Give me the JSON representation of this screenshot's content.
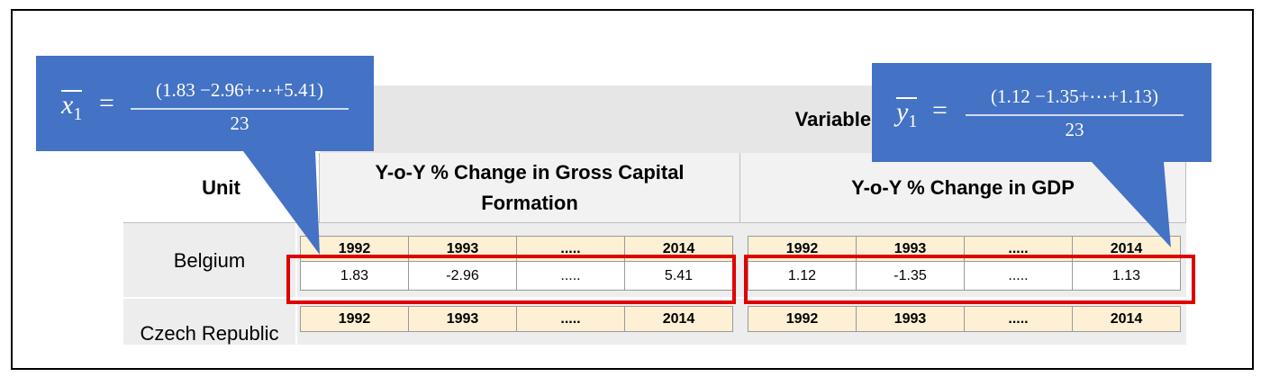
{
  "header": {
    "variables": "Variables",
    "unit": "Unit",
    "columns": [
      "Y-o-Y % Change in Gross Capital Formation",
      "Y-o-Y % Change in GDP"
    ]
  },
  "rows": [
    {
      "unit": "Belgium",
      "tables": [
        {
          "years": [
            "1992",
            "1993",
            ".....",
            "2014"
          ],
          "values": [
            "1.83",
            "-2.96",
            ".....",
            "5.41"
          ]
        },
        {
          "years": [
            "1992",
            "1993",
            ".....",
            "2014"
          ],
          "values": [
            "1.12",
            "-1.35",
            ".....",
            "1.13"
          ]
        }
      ]
    },
    {
      "unit": "Czech Republic",
      "tables": [
        {
          "years": [
            "1992",
            "1993",
            ".....",
            "2014"
          ]
        },
        {
          "years": [
            "1992",
            "1993",
            ".....",
            "2014"
          ]
        }
      ]
    }
  ],
  "callouts": [
    {
      "variable": "x",
      "subscript": "1",
      "operator": "=",
      "numerator": "(1.83 −2.96+⋯+5.41)",
      "denominator": "23"
    },
    {
      "variable": "y",
      "subscript": "1",
      "operator": "=",
      "numerator": "(1.12 −1.35+⋯+1.13)",
      "denominator": "23"
    }
  ]
}
